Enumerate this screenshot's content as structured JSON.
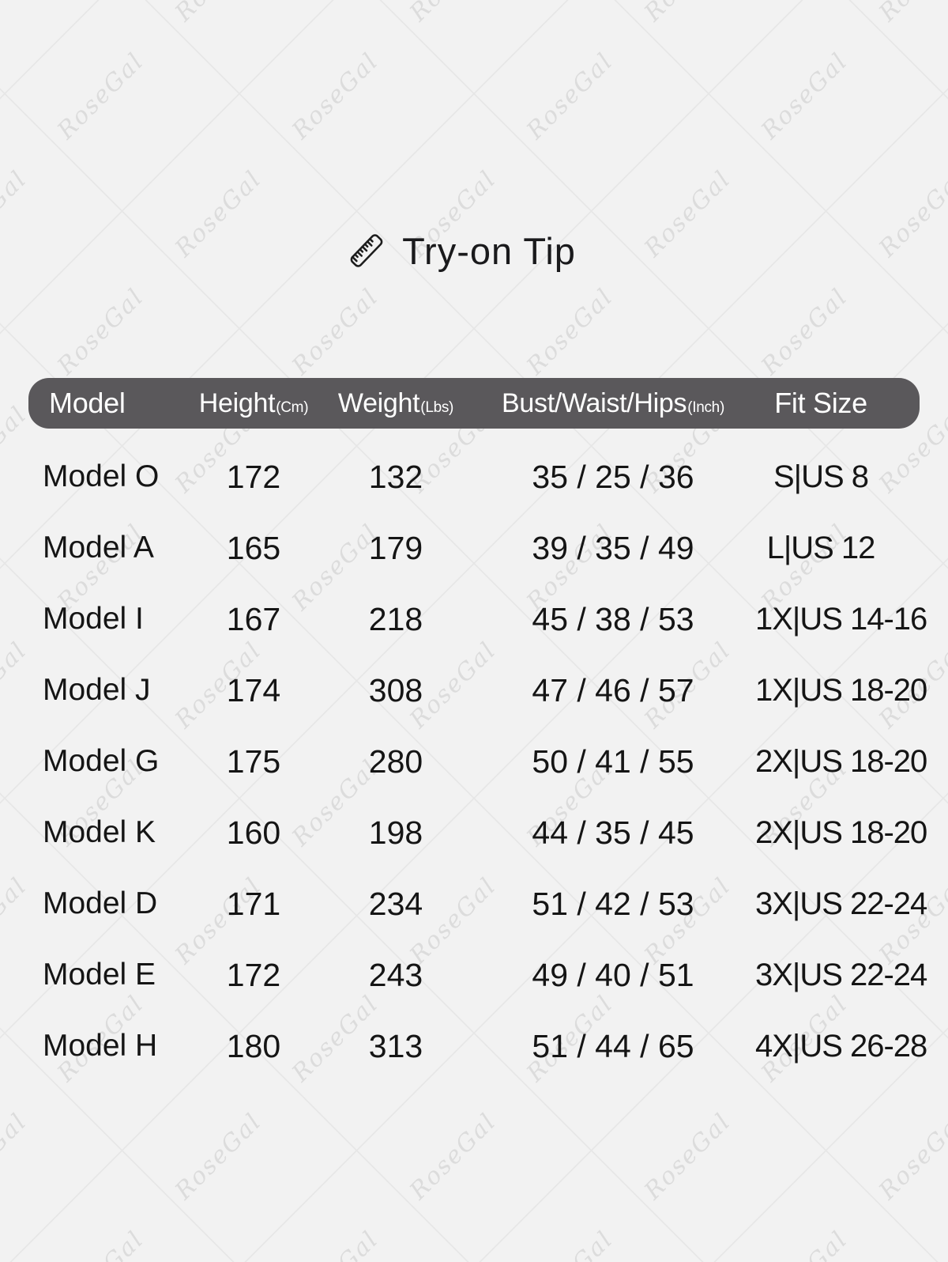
{
  "colors": {
    "background": "#f2f2f2",
    "header_bg": "#5a585b",
    "header_text": "#ffffff",
    "body_text": "#161616",
    "watermark": "#d9d9d9"
  },
  "watermark": {
    "text": "RoseGal"
  },
  "title": {
    "icon": "ruler-icon",
    "text": "Try-on Tip"
  },
  "chart_data": {
    "type": "table",
    "title": "Try-on Tip",
    "legend_position": "none",
    "columns": [
      {
        "label": "Model",
        "unit": ""
      },
      {
        "label": "Height",
        "unit": "(Cm)"
      },
      {
        "label": "Weight",
        "unit": "(Lbs)"
      },
      {
        "label": "Bust/Waist/Hips",
        "unit": "(Inch)"
      },
      {
        "label": "Fit Size",
        "unit": ""
      }
    ],
    "rows": [
      {
        "model": "Model O",
        "height": "172",
        "weight": "132",
        "bwh": "35 / 25 / 36",
        "fit": "S|US 8"
      },
      {
        "model": "Model A",
        "height": "165",
        "weight": "179",
        "bwh": "39 / 35 / 49",
        "fit": "L|US 12"
      },
      {
        "model": "Model I",
        "height": "167",
        "weight": "218",
        "bwh": "45 / 38 / 53",
        "fit": "1X|US 14-16"
      },
      {
        "model": "Model J",
        "height": "174",
        "weight": "308",
        "bwh": "47 / 46 / 57",
        "fit": "1X|US 18-20"
      },
      {
        "model": "Model G",
        "height": "175",
        "weight": "280",
        "bwh": "50 / 41 / 55",
        "fit": "2X|US 18-20"
      },
      {
        "model": "Model K",
        "height": "160",
        "weight": "198",
        "bwh": "44 / 35 / 45",
        "fit": "2X|US 18-20"
      },
      {
        "model": "Model D",
        "height": "171",
        "weight": "234",
        "bwh": "51 / 42 / 53",
        "fit": "3X|US 22-24"
      },
      {
        "model": "Model E",
        "height": "172",
        "weight": "243",
        "bwh": "49 / 40 / 51",
        "fit": "3X|US 22-24"
      },
      {
        "model": "Model H",
        "height": "180",
        "weight": "313",
        "bwh": "51 / 44 / 65",
        "fit": "4X|US 26-28"
      }
    ]
  }
}
